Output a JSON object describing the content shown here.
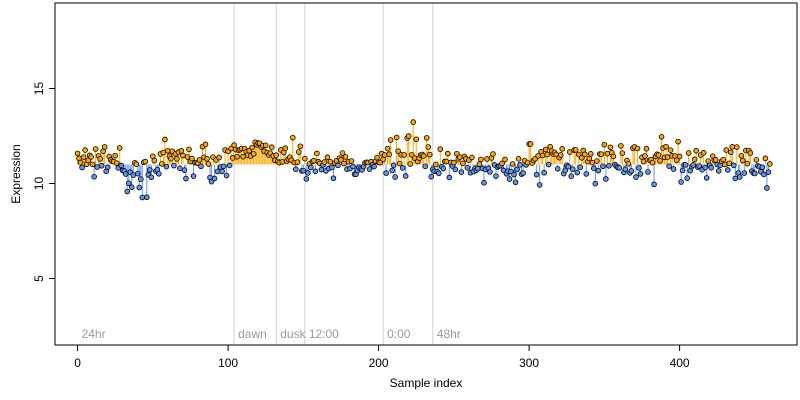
{
  "chart_data": {
    "type": "scatter",
    "title": "",
    "xlabel": "Sample index",
    "ylabel": "Expression",
    "xlim": [
      -15,
      478
    ],
    "ylim": [
      1.5,
      19.5
    ],
    "xticks": [
      0,
      100,
      200,
      300,
      400
    ],
    "yticks": [
      5,
      10,
      15
    ],
    "baseline": 11.0,
    "colors": {
      "above": "#FFA500",
      "below": "#6495ED",
      "outline": "#000000",
      "period_line": "#D3D3D3",
      "period_label": "#9A9A9A"
    },
    "periods": [
      {
        "label": "24hr",
        "x": 0
      },
      {
        "label": "dawn",
        "x": 104
      },
      {
        "label": "dusk",
        "x": 132
      },
      {
        "label": "12:00",
        "x": 151
      },
      {
        "label": "0:00",
        "x": 203
      },
      {
        "label": "48hr",
        "x": 236
      }
    ],
    "segments": [
      [
        0,
        30,
        11.2,
        0.35
      ],
      [
        30,
        50,
        10.5,
        0.45
      ],
      [
        50,
        104,
        11.2,
        0.45
      ],
      [
        104,
        132,
        11.8,
        0.25
      ],
      [
        132,
        151,
        11.3,
        0.45
      ],
      [
        151,
        203,
        11.0,
        0.35
      ],
      [
        203,
        236,
        11.4,
        0.55
      ],
      [
        236,
        300,
        10.9,
        0.4
      ],
      [
        300,
        400,
        11.2,
        0.5
      ],
      [
        400,
        461,
        10.9,
        0.5
      ]
    ],
    "n_points": 461
  }
}
